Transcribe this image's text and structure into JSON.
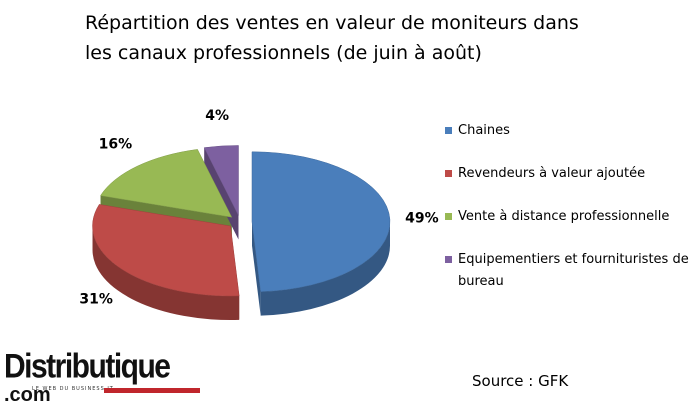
{
  "chart_data": {
    "type": "pie3d",
    "title": "Répartition des ventes en valeur de moniteurs dans les canaux professionnels (de juin à août)",
    "series": [
      {
        "name": "Chaines",
        "color": "#4a7ebb",
        "values": [
          49
        ],
        "value_labels": [
          "49%"
        ]
      },
      {
        "name": "Revendeurs à valeur ajoutée",
        "color": "#be4b48",
        "values": [
          31
        ],
        "value_labels": [
          "31%"
        ]
      },
      {
        "name": "Vente à distance professionnelle",
        "color": "#98b954",
        "values": [
          16
        ],
        "value_labels": [
          "16%"
        ]
      },
      {
        "name": "Equipementiers et fournituristes de bureau",
        "color": "#7d60a0",
        "values": [
          4
        ],
        "value_labels": [
          "4%"
        ]
      }
    ],
    "legend": "right",
    "source": "Source : GFK"
  },
  "logo": {
    "name": "Distributique",
    "suffix": ".com",
    "tagline": "LE WEB DU BUSINESS IT"
  }
}
